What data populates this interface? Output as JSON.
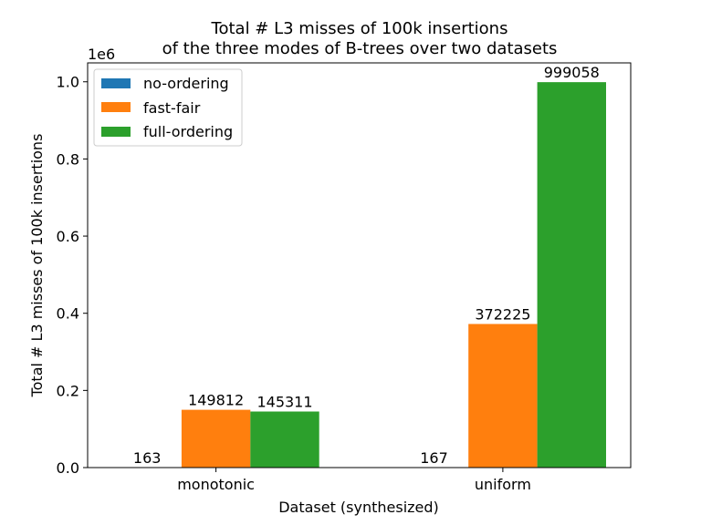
{
  "chart_data": {
    "type": "bar",
    "title_line1": "Total # L3 misses of 100k insertions",
    "title_line2": "of the three modes of B-trees over two datasets",
    "xlabel": "Dataset (synthesized)",
    "ylabel": "Total # L3 misses of 100k insertions",
    "y_offset_label": "1e6",
    "ylim": [
      0,
      1049011
    ],
    "y_scale": 1000000,
    "y_ticks": [
      0,
      200000,
      400000,
      600000,
      800000,
      1000000
    ],
    "y_tick_labels": [
      "0.0",
      "0.2",
      "0.4",
      "0.6",
      "0.8",
      "1.0"
    ],
    "categories": [
      "monotonic",
      "uniform"
    ],
    "series": [
      {
        "name": "no-ordering",
        "color": "#1f77b4",
        "values": [
          163,
          167
        ],
        "labels": [
          "163",
          "167"
        ]
      },
      {
        "name": "fast-fair",
        "color": "#ff7f0e",
        "values": [
          149812,
          372225
        ],
        "labels": [
          "149812",
          "372225"
        ]
      },
      {
        "name": "full-ordering",
        "color": "#2ca02c",
        "values": [
          145311,
          999058
        ],
        "labels": [
          "145311",
          "999058"
        ]
      }
    ],
    "legend_position": "upper-left",
    "grid": false
  }
}
